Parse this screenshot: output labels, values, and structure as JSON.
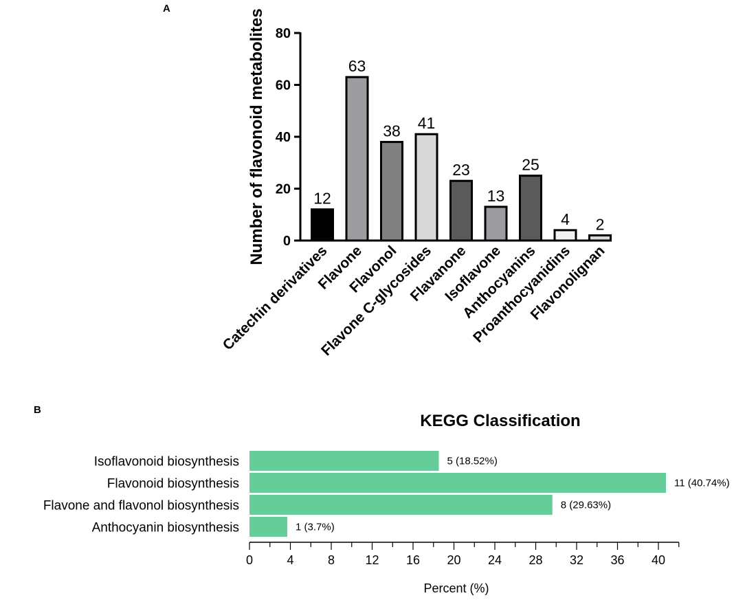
{
  "chart_data": [
    {
      "panel": "A",
      "type": "bar",
      "title": "",
      "xlabel": "",
      "ylabel": "Number of flavonoid metabolites",
      "ylim": [
        0,
        80
      ],
      "yticks": [
        0,
        20,
        40,
        60,
        80
      ],
      "categories": [
        "Catechin derivatives",
        "Flavone",
        "Flavonol",
        "Flavone C-glycosides",
        "Flavanone",
        "Isoflavone",
        "Anthocyanins",
        "Proanthocyanidins",
        "Flavonolignan"
      ],
      "values": [
        12,
        63,
        38,
        41,
        23,
        13,
        25,
        4,
        2
      ],
      "data_labels": [
        "12",
        "63",
        "38",
        "41",
        "23",
        "13",
        "25",
        "4",
        "2"
      ],
      "colors": [
        "#000000",
        "#9c9ca1",
        "#808080",
        "#d9d9d9",
        "#5a5a5a",
        "#9c9ca1",
        "#5a5a5a",
        "#f2f2f2",
        "#d9d9d9"
      ]
    },
    {
      "panel": "B",
      "type": "bar",
      "orientation": "horizontal",
      "title": "KEGG Classification",
      "xlabel": "Percent (%)",
      "ylabel": "",
      "xlim": [
        0,
        42
      ],
      "xticks": [
        0,
        4,
        8,
        12,
        16,
        20,
        24,
        28,
        32,
        36,
        40
      ],
      "categories": [
        "Isoflavonoid biosynthesis",
        "Flavonoid biosynthesis",
        "Flavone and flavonol biosynthesis",
        "Anthocyanin biosynthesis"
      ],
      "values": [
        18.52,
        40.74,
        29.63,
        3.7
      ],
      "counts": [
        5,
        11,
        8,
        1
      ],
      "data_labels": [
        "5 (18.52%)",
        "11 (40.74%)",
        "8 (29.63%)",
        "1 (3.7%)"
      ],
      "color": "#66cc99"
    }
  ],
  "panel_labels": {
    "a": "A",
    "b": "B"
  }
}
